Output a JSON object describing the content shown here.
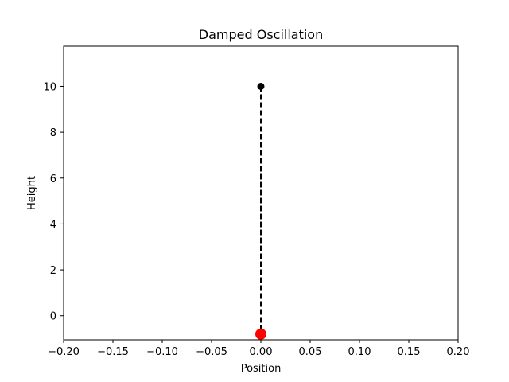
{
  "chart_data": {
    "type": "scatter",
    "title": "Damped Oscillation",
    "xlabel": "Position",
    "ylabel": "Height",
    "xlim": [
      -0.2,
      0.2
    ],
    "ylim": [
      -1.05,
      11.75
    ],
    "xticks": [
      -0.2,
      -0.15,
      -0.1,
      -0.05,
      0.0,
      0.05,
      0.1,
      0.15,
      0.2
    ],
    "xtick_labels": [
      "−0.20",
      "−0.15",
      "−0.10",
      "−0.05",
      "0.00",
      "0.05",
      "0.10",
      "0.15",
      "0.20"
    ],
    "yticks": [
      0,
      2,
      4,
      6,
      8,
      10
    ],
    "ytick_labels": [
      "0",
      "2",
      "4",
      "6",
      "8",
      "10"
    ],
    "grid": false,
    "anchor": {
      "x": 0.0,
      "y": 10.0,
      "color": "#000000"
    },
    "spring": {
      "x": [
        0.0,
        0.0
      ],
      "y": [
        10.0,
        -0.8
      ],
      "color": "#000000",
      "style": "dashed"
    },
    "mass": {
      "x": 0.0,
      "y": -0.8,
      "color": "#ff0000"
    }
  }
}
